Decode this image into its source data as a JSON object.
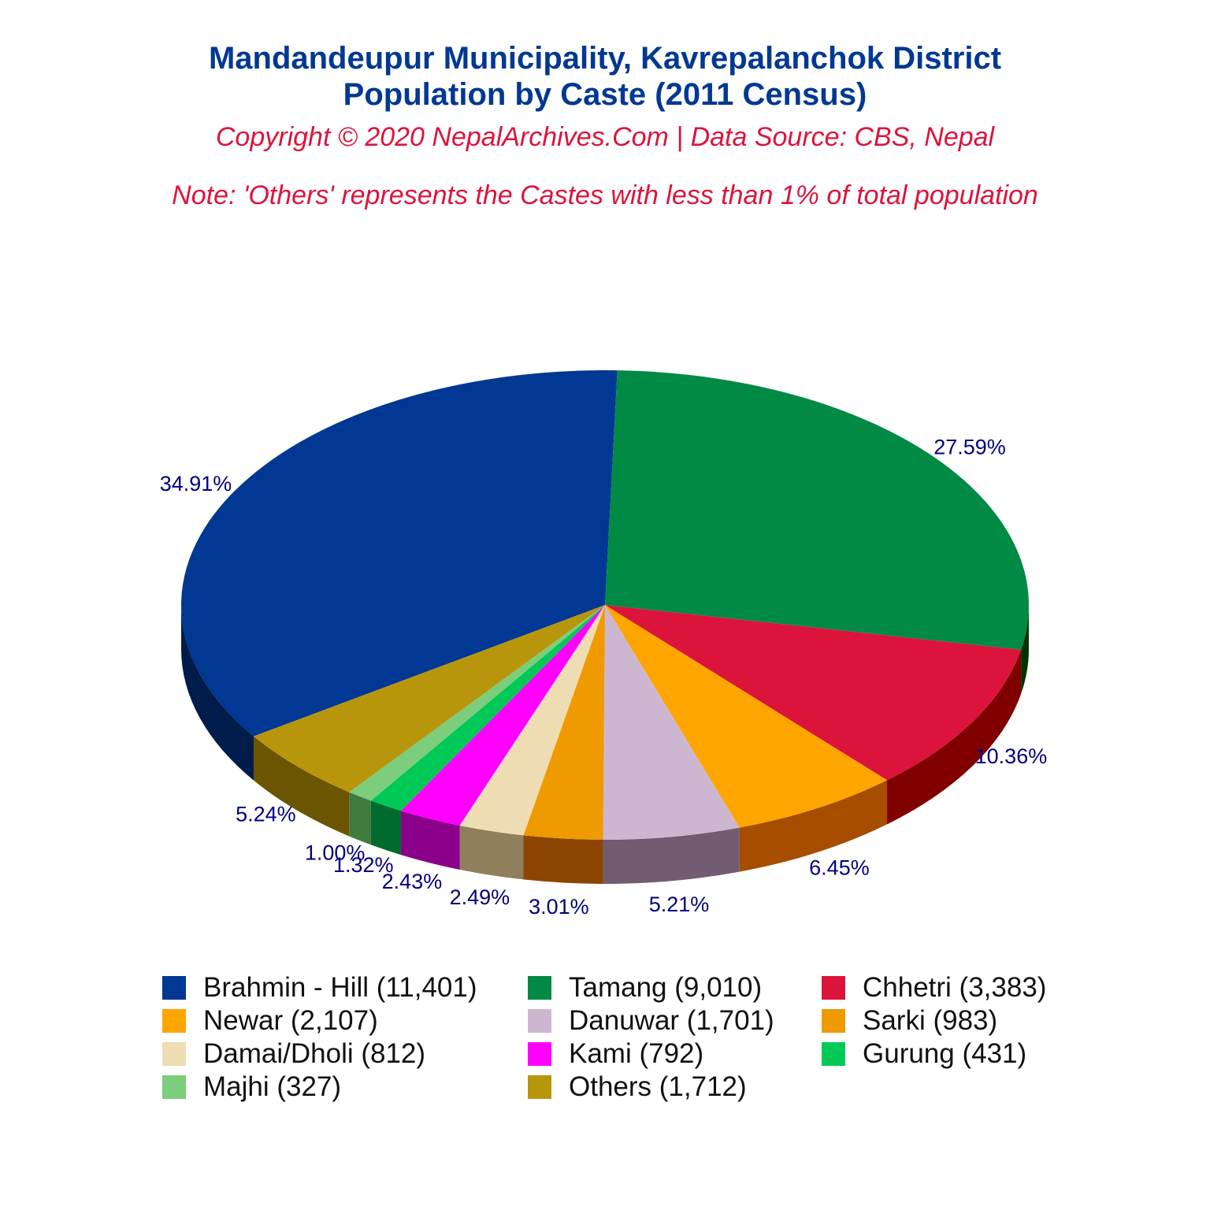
{
  "title_line1": "Mandandeupur Municipality, Kavrepalanchok District",
  "title_line2": "Population by Caste (2011 Census)",
  "copyright": "Copyright © 2020 NepalArchives.Com | Data Source: CBS, Nepal",
  "note": "Note: 'Others' represents the Castes with less than 1% of total population",
  "chart_data": {
    "type": "pie",
    "style": "3d",
    "label_color": "#000080",
    "slices": [
      {
        "name": "Brahmin - Hill",
        "value": 11401,
        "percent_label": "34.91%",
        "legend_label": "Brahmin - Hill (11,401)",
        "color": "#003893",
        "side_color": "#001c4a"
      },
      {
        "name": "Tamang",
        "value": 9010,
        "percent_label": "27.59%",
        "legend_label": "Tamang (9,010)",
        "color": "#008a44",
        "side_color": "#003300"
      },
      {
        "name": "Chhetri",
        "value": 3383,
        "percent_label": "10.36%",
        "legend_label": "Chhetri (3,383)",
        "color": "#dc143c",
        "side_color": "#800000"
      },
      {
        "name": "Newar",
        "value": 2107,
        "percent_label": "6.45%",
        "legend_label": "Newar (2,107)",
        "color": "#ffa500",
        "side_color": "#a64d00"
      },
      {
        "name": "Danuwar",
        "value": 1701,
        "percent_label": "5.21%",
        "legend_label": "Danuwar (1,701)",
        "color": "#cdb7d0",
        "side_color": "#725c72"
      },
      {
        "name": "Sarki",
        "value": 983,
        "percent_label": "3.01%",
        "legend_label": "Sarki (983)",
        "color": "#ee9a00",
        "side_color": "#8c4500"
      },
      {
        "name": "Damai/Dholi",
        "value": 812,
        "percent_label": "2.49%",
        "legend_label": "Damai/Dholi (812)",
        "color": "#eedcb3",
        "side_color": "#8f7f5c"
      },
      {
        "name": "Kami",
        "value": 792,
        "percent_label": "2.43%",
        "legend_label": "Kami (792)",
        "color": "#ff00ff",
        "side_color": "#8b008b"
      },
      {
        "name": "Gurung",
        "value": 431,
        "percent_label": "1.32%",
        "legend_label": "Gurung (431)",
        "color": "#00c957",
        "side_color": "#006b2e"
      },
      {
        "name": "Majhi",
        "value": 327,
        "percent_label": "1.00%",
        "legend_label": "Majhi (327)",
        "color": "#7ccd7c",
        "side_color": "#3f7a3f"
      },
      {
        "name": "Others",
        "value": 1712,
        "percent_label": "5.24%",
        "legend_label": "Others (1,712)",
        "color": "#b8960c",
        "side_color": "#6b5500"
      }
    ]
  }
}
